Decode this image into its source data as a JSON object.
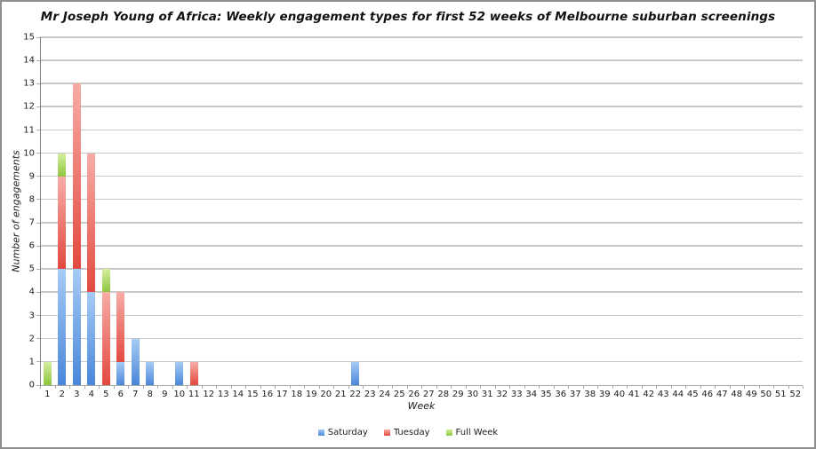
{
  "title": "Mr Joseph Young of Africa: Weekly engagement types for first 52 weeks of Melbourne suburban screenings",
  "colors": {
    "gridline": "#c9c9c9",
    "baseline": "#a9a9a9",
    "axis_line": "#808080",
    "tick": "#a9a9a9",
    "text": "#1c1c1c"
  },
  "chart_data": {
    "type": "bar",
    "stacked": true,
    "title": "Mr Joseph Young of Africa: Weekly engagement types for first 52 weeks of Melbourne suburban screenings",
    "xlabel": "Week",
    "ylabel": "Number of engagements",
    "ylim": [
      0,
      15
    ],
    "ytick_step": 1,
    "grid": true,
    "legend_position": "bottom",
    "categories": [
      1,
      2,
      3,
      4,
      5,
      6,
      7,
      8,
      9,
      10,
      11,
      12,
      13,
      14,
      15,
      16,
      17,
      18,
      19,
      20,
      21,
      22,
      23,
      24,
      25,
      26,
      27,
      28,
      29,
      30,
      31,
      32,
      33,
      34,
      35,
      36,
      37,
      38,
      39,
      40,
      41,
      42,
      43,
      44,
      45,
      46,
      47,
      48,
      49,
      50,
      51,
      52
    ],
    "series": [
      {
        "name": "Saturday",
        "color_top": "#a6cbf5",
        "color_bottom": "#4a86d9",
        "values": [
          0,
          5,
          5,
          4,
          0,
          1,
          2,
          1,
          0,
          1,
          0,
          0,
          0,
          0,
          0,
          0,
          0,
          0,
          0,
          0,
          0,
          1,
          0,
          0,
          0,
          0,
          0,
          0,
          0,
          0,
          0,
          0,
          0,
          0,
          0,
          0,
          0,
          0,
          0,
          0,
          0,
          0,
          0,
          0,
          0,
          0,
          0,
          0,
          0,
          0,
          0,
          0
        ]
      },
      {
        "name": "Tuesday",
        "color_top": "#f7aca6",
        "color_bottom": "#e2493f",
        "values": [
          0,
          4,
          8,
          6,
          4,
          3,
          0,
          0,
          0,
          0,
          1,
          0,
          0,
          0,
          0,
          0,
          0,
          0,
          0,
          0,
          0,
          0,
          0,
          0,
          0,
          0,
          0,
          0,
          0,
          0,
          0,
          0,
          0,
          0,
          0,
          0,
          0,
          0,
          0,
          0,
          0,
          0,
          0,
          0,
          0,
          0,
          0,
          0,
          0,
          0,
          0,
          0
        ]
      },
      {
        "name": "Full Week",
        "color_top": "#d4ed9f",
        "color_bottom": "#8ec63f",
        "values": [
          1,
          1,
          0,
          0,
          1,
          0,
          0,
          0,
          0,
          0,
          0,
          0,
          0,
          0,
          0,
          0,
          0,
          0,
          0,
          0,
          0,
          0,
          0,
          0,
          0,
          0,
          0,
          0,
          0,
          0,
          0,
          0,
          0,
          0,
          0,
          0,
          0,
          0,
          0,
          0,
          0,
          0,
          0,
          0,
          0,
          0,
          0,
          0,
          0,
          0,
          0,
          0
        ]
      }
    ]
  }
}
